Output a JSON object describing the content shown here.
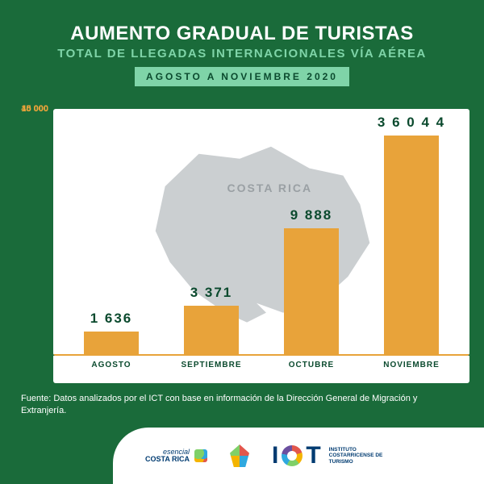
{
  "header": {
    "title": "AUMENTO GRADUAL DE TURISTAS",
    "subtitle": "TOTAL DE LLEGADAS INTERNACIONALES VÍA AÉREA",
    "period": "AGOSTO A NOVIEMBRE 2020"
  },
  "chart": {
    "type": "bar",
    "background_color": "#ffffff",
    "bar_color": "#e8a33a",
    "grid_color": "#e8a33a",
    "value_text_color": "#0b4a2e",
    "axis_label_color": "#0b4a2e",
    "map_label": "COSTA RICA",
    "map_fill": "#c7cbce",
    "y_ticks": [
      {
        "label": "40 000",
        "value": 40000
      },
      {
        "label": "10 000",
        "value": 10000
      },
      {
        "label": "5 000",
        "value": 5000
      }
    ],
    "y_domain_max": 42000,
    "categories": [
      "AGOSTO",
      "SEPTIEMBRE",
      "OCTUBRE",
      "NOVIEMBRE"
    ],
    "values": [
      1636,
      3371,
      9888,
      36044
    ],
    "value_labels": [
      "1 636",
      "3 371",
      "9 888",
      "3 6 0 4 4"
    ],
    "bar_width_pct": 68,
    "value_fontsize": 17,
    "category_fontsize": 10
  },
  "source": "Fuente: Datos analizados por el ICT con base en información de la Dirección General de Migración y Extranjería.",
  "footer": {
    "logo_cr_line1": "esencial",
    "logo_cr_line2": "COSTA RICA",
    "logo_ict_i": "I",
    "logo_ict_t": "T",
    "logo_ict_sub": "INSTITUTO\nCOSTARRICENSE DE\nTURISMO"
  },
  "colors": {
    "page_bg": "#1a6b3a",
    "badge_bg": "#7fd4a8",
    "badge_text": "#0b4a2e",
    "title_text": "#ffffff",
    "subtitle_text": "#7fd4a8"
  }
}
